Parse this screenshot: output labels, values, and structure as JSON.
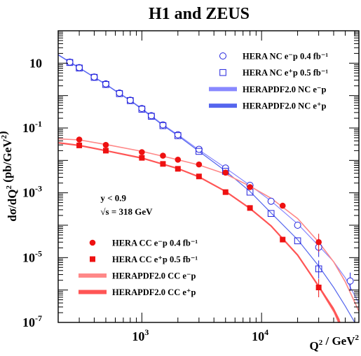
{
  "chart_data": {
    "type": "scatter",
    "title": "H1 and ZEUS",
    "xlabel": "Q² / GeV²",
    "ylabel": "dσ/dQ² (pb/GeV²)",
    "x_scale": "log",
    "y_scale": "log",
    "xlim": [
      200,
      65000
    ],
    "ylim": [
      1e-07,
      100
    ],
    "x_ticks": [
      {
        "value": 1000,
        "label_base": "10",
        "label_exp": "3"
      },
      {
        "value": 10000,
        "label_base": "10",
        "label_exp": "4"
      }
    ],
    "y_ticks": [
      {
        "value": 10,
        "label_base": "10",
        "label_exp": ""
      },
      {
        "value": 0.1,
        "label_base": "10",
        "label_exp": "-1"
      },
      {
        "value": 0.001,
        "label_base": "10",
        "label_exp": "-3"
      },
      {
        "value": 1e-05,
        "label_base": "10",
        "label_exp": "-5"
      },
      {
        "value": 1e-07,
        "label_base": "10",
        "label_exp": "-7"
      }
    ],
    "annotations": [
      {
        "text": "y < 0.9",
        "x": 1000,
        "y": 0.00055
      },
      {
        "text": "√s = 318 GeV",
        "x": 1000,
        "y": 0.00021
      }
    ],
    "legend_upper": [
      {
        "ref": "nc_em",
        "kind": "marker",
        "text": "HERA NC e⁻p 0.4 fb⁻¹"
      },
      {
        "ref": "nc_ep",
        "kind": "marker",
        "text": "HERA NC e⁺p 0.5 fb⁻¹"
      },
      {
        "ref": "nc_em_fit",
        "kind": "band",
        "text": "HERAPDF2.0 NC e⁻p"
      },
      {
        "ref": "nc_ep_fit",
        "kind": "band",
        "text": "HERAPDF2.0 NC e⁺p"
      }
    ],
    "legend_lower": [
      {
        "ref": "cc_em",
        "kind": "marker",
        "text": "HERA CC e⁻p 0.4 fb⁻¹"
      },
      {
        "ref": "cc_ep",
        "kind": "marker",
        "text": "HERA CC e⁺p 0.5 fb⁻¹"
      },
      {
        "ref": "cc_em_fit",
        "kind": "band",
        "text": "HERAPDF2.0 CC e⁻p"
      },
      {
        "ref": "cc_ep_fit",
        "kind": "band",
        "text": "HERAPDF2.0 CC e⁺p"
      }
    ],
    "series": [
      {
        "id": "nc_em",
        "name": "HERA NC e⁻p 0.4 fb⁻¹",
        "marker": "open-circle",
        "color": "#2222dd",
        "points": [
          [
            250,
            10.8
          ],
          [
            300,
            7.3
          ],
          [
            400,
            3.75
          ],
          [
            500,
            2.3
          ],
          [
            650,
            1.2
          ],
          [
            800,
            0.72
          ],
          [
            1000,
            0.4
          ],
          [
            1200,
            0.24
          ],
          [
            1500,
            0.125
          ],
          [
            2000,
            0.062
          ],
          [
            3000,
            0.022
          ],
          [
            5000,
            0.0058
          ],
          [
            8000,
            0.0017
          ],
          [
            12000,
            0.00055
          ],
          [
            20000,
            0.0001
          ],
          [
            30000,
            2.1e-05
          ],
          [
            55000,
            1.9e-06
          ]
        ]
      },
      {
        "id": "nc_ep",
        "name": "HERA NC e⁺p 0.5 fb⁻¹",
        "marker": "open-square",
        "color": "#2222dd",
        "points": [
          [
            250,
            10.5
          ],
          [
            300,
            7.1
          ],
          [
            400,
            3.65
          ],
          [
            500,
            2.2
          ],
          [
            650,
            1.15
          ],
          [
            800,
            0.7
          ],
          [
            1000,
            0.38
          ],
          [
            1200,
            0.23
          ],
          [
            1500,
            0.118
          ],
          [
            2000,
            0.058
          ],
          [
            3000,
            0.019
          ],
          [
            5000,
            0.0046
          ],
          [
            8000,
            0.00105
          ],
          [
            12000,
            0.00023
          ],
          [
            20000,
            3.3e-05
          ],
          [
            30000,
            4.5e-06
          ]
        ]
      },
      {
        "id": "cc_em",
        "name": "HERA CC e⁻p 0.4 fb⁻¹",
        "marker": "filled-circle",
        "color": "#ee1111",
        "points": [
          [
            300,
            0.044
          ],
          [
            500,
            0.03
          ],
          [
            1000,
            0.018
          ],
          [
            1500,
            0.014
          ],
          [
            2000,
            0.0105
          ],
          [
            3000,
            0.0075
          ],
          [
            5000,
            0.0042
          ],
          [
            8000,
            0.0015
          ],
          [
            15000,
            0.0004
          ],
          [
            30000,
            3e-05
          ]
        ]
      },
      {
        "id": "cc_ep",
        "name": "HERA CC e⁺p 0.5 fb⁻¹",
        "marker": "filled-square",
        "color": "#ee1111",
        "points": [
          [
            300,
            0.029
          ],
          [
            500,
            0.02
          ],
          [
            1000,
            0.012
          ],
          [
            1500,
            0.0078
          ],
          [
            2000,
            0.0055
          ],
          [
            3000,
            0.0032
          ],
          [
            5000,
            0.00105
          ],
          [
            8000,
            0.00034
          ],
          [
            15000,
            3.6e-05
          ],
          [
            30000,
            1.2e-06
          ]
        ]
      },
      {
        "id": "nc_em_fit",
        "name": "HERAPDF2.0 NC e⁻p",
        "line": "band",
        "color": "#8888ff",
        "points": [
          [
            200,
            18.5
          ],
          [
            250,
            11
          ],
          [
            300,
            7.3
          ],
          [
            400,
            3.75
          ],
          [
            500,
            2.25
          ],
          [
            650,
            1.18
          ],
          [
            800,
            0.72
          ],
          [
            1000,
            0.4
          ],
          [
            1500,
            0.127
          ],
          [
            2000,
            0.062
          ],
          [
            3000,
            0.021
          ],
          [
            5000,
            0.0058
          ],
          [
            8000,
            0.0017
          ],
          [
            12000,
            0.00056
          ],
          [
            20000,
            0.00011
          ],
          [
            30000,
            2.3e-05
          ],
          [
            40000,
            7.5e-06
          ],
          [
            50000,
            2.4e-06
          ],
          [
            65000,
            3.9e-07
          ]
        ]
      },
      {
        "id": "nc_ep_fit",
        "name": "HERAPDF2.0 NC e⁺p",
        "line": "band",
        "color": "#5566ee",
        "points": [
          [
            200,
            18
          ],
          [
            250,
            10.7
          ],
          [
            300,
            7.1
          ],
          [
            400,
            3.65
          ],
          [
            500,
            2.2
          ],
          [
            650,
            1.15
          ],
          [
            800,
            0.7
          ],
          [
            1000,
            0.38
          ],
          [
            1500,
            0.12
          ],
          [
            2000,
            0.058
          ],
          [
            3000,
            0.019
          ],
          [
            5000,
            0.0047
          ],
          [
            8000,
            0.0011
          ],
          [
            12000,
            0.00024
          ],
          [
            20000,
            3.6e-05
          ],
          [
            30000,
            5.5e-06
          ],
          [
            40000,
            1.2e-06
          ],
          [
            50000,
            3.2e-07
          ],
          [
            60000,
            1e-07
          ]
        ]
      },
      {
        "id": "cc_em_fit",
        "name": "HERAPDF2.0 CC e⁻p",
        "line": "band",
        "color": "#ff8888",
        "points": [
          [
            200,
            0.046
          ],
          [
            300,
            0.043
          ],
          [
            500,
            0.031
          ],
          [
            1000,
            0.019
          ],
          [
            2000,
            0.0105
          ],
          [
            3000,
            0.0072
          ],
          [
            5000,
            0.0038
          ],
          [
            8000,
            0.0016
          ],
          [
            12000,
            0.00068
          ],
          [
            20000,
            0.00016
          ],
          [
            30000,
            3e-05
          ],
          [
            40000,
            7.4e-06
          ],
          [
            50000,
            1.8e-06
          ],
          [
            65000,
            2.2e-07
          ]
        ]
      },
      {
        "id": "cc_ep_fit",
        "name": "HERAPDF2.0 CC e⁺p",
        "line": "band",
        "color": "#ff5555",
        "points": [
          [
            200,
            0.035
          ],
          [
            300,
            0.029
          ],
          [
            500,
            0.02
          ],
          [
            1000,
            0.0118
          ],
          [
            2000,
            0.0056
          ],
          [
            3000,
            0.0031
          ],
          [
            5000,
            0.0011
          ],
          [
            8000,
            0.00033
          ],
          [
            12000,
            9.5e-05
          ],
          [
            20000,
            1.2e-05
          ],
          [
            30000,
            1.3e-06
          ],
          [
            40000,
            2.5e-07
          ],
          [
            45000,
            1e-07
          ]
        ]
      }
    ]
  }
}
